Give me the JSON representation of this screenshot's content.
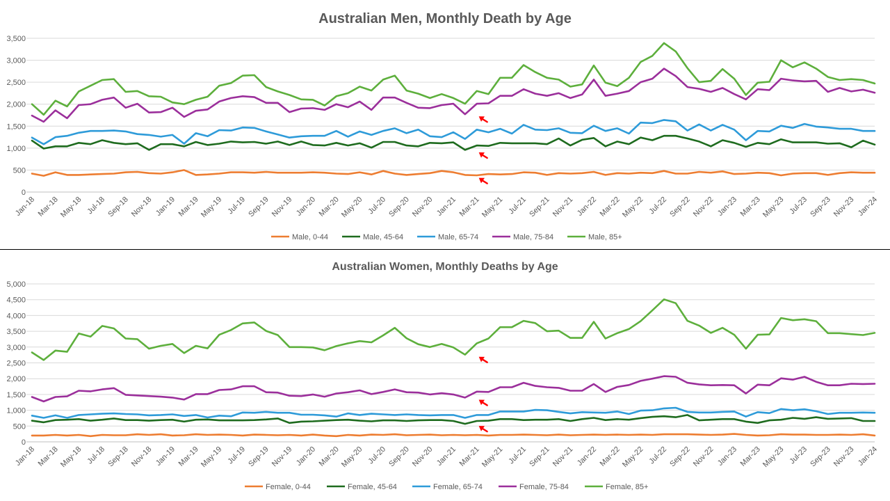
{
  "chart_data": [
    {
      "type": "line",
      "title": "Australian Men, Monthly Death by Age",
      "xlabel": "",
      "ylabel": "",
      "ylim": [
        0,
        3500
      ],
      "yticks": [
        "0",
        "500",
        "1,000",
        "1,500",
        "2,000",
        "2,500",
        "3,000",
        "3,500"
      ],
      "grid": true,
      "legend_position": "bottom",
      "x": [
        "Jan-18",
        "Feb-18",
        "Mar-18",
        "Apr-18",
        "May-18",
        "Jun-18",
        "Jul-18",
        "Aug-18",
        "Sep-18",
        "Oct-18",
        "Nov-18",
        "Dec-18",
        "Jan-19",
        "Feb-19",
        "Mar-19",
        "Apr-19",
        "May-19",
        "Jun-19",
        "Jul-19",
        "Aug-19",
        "Sep-19",
        "Oct-19",
        "Nov-19",
        "Dec-19",
        "Jan-20",
        "Feb-20",
        "Mar-20",
        "Apr-20",
        "May-20",
        "Jun-20",
        "Jul-20",
        "Aug-20",
        "Sep-20",
        "Oct-20",
        "Nov-20",
        "Dec-20",
        "Jan-21",
        "Feb-21",
        "Mar-21",
        "Apr-21",
        "May-21",
        "Jun-21",
        "Jul-21",
        "Aug-21",
        "Sep-21",
        "Oct-21",
        "Nov-21",
        "Dec-21",
        "Jan-22",
        "Feb-22",
        "Mar-22",
        "Apr-22",
        "May-22",
        "Jun-22",
        "Jul-22",
        "Aug-22",
        "Sep-22",
        "Oct-22",
        "Nov-22",
        "Dec-22",
        "Jan-23",
        "Feb-23",
        "Mar-23",
        "Apr-23",
        "May-23",
        "Jun-23",
        "Jul-23",
        "Aug-23",
        "Sep-23",
        "Oct-23",
        "Nov-23",
        "Dec-23",
        "Jan-24"
      ],
      "xtick_labels": [
        "Jan-18",
        "Mar-18",
        "May-18",
        "Jul-18",
        "Sep-18",
        "Nov-18",
        "Jan-19",
        "Mar-19",
        "May-19",
        "Jul-19",
        "Sep-19",
        "Nov-19",
        "Jan-20",
        "Mar-20",
        "May-20",
        "Jul-20",
        "Sep-20",
        "Nov-20",
        "Jan-21",
        "Mar-21",
        "May-21",
        "Jul-21",
        "Sep-21",
        "Nov-21",
        "Jan-22",
        "Mar-22",
        "May-22",
        "Jul-22",
        "Sep-22",
        "Nov-22",
        "Jan-23",
        "Mar-23",
        "May-23",
        "Jul-23",
        "Sep-23",
        "Nov-23",
        "Jan-24"
      ],
      "series": [
        {
          "name": "Male, 0-44",
          "color": "#ED7D31",
          "values": [
            420,
            370,
            450,
            390,
            390,
            400,
            410,
            420,
            450,
            460,
            430,
            420,
            450,
            500,
            390,
            400,
            420,
            450,
            450,
            440,
            460,
            440,
            440,
            440,
            450,
            440,
            420,
            410,
            450,
            400,
            480,
            420,
            390,
            410,
            430,
            480,
            450,
            390,
            380,
            410,
            400,
            410,
            450,
            440,
            390,
            430,
            420,
            430,
            460,
            390,
            430,
            420,
            440,
            430,
            480,
            420,
            420,
            460,
            440,
            470,
            410,
            420,
            440,
            430,
            380,
            420,
            430,
            430,
            390,
            430,
            450,
            440,
            440
          ]
        },
        {
          "name": "Male, 45-64",
          "color": "#1E6B1E",
          "values": [
            1170,
            990,
            1040,
            1040,
            1120,
            1090,
            1180,
            1120,
            1090,
            1110,
            960,
            1090,
            1090,
            1040,
            1140,
            1070,
            1100,
            1150,
            1130,
            1140,
            1100,
            1150,
            1070,
            1150,
            1070,
            1060,
            1120,
            1060,
            1110,
            1010,
            1140,
            1140,
            1060,
            1040,
            1120,
            1110,
            1130,
            960,
            1060,
            1050,
            1120,
            1110,
            1110,
            1110,
            1090,
            1220,
            1060,
            1190,
            1230,
            1040,
            1150,
            1090,
            1240,
            1180,
            1280,
            1280,
            1220,
            1150,
            1040,
            1180,
            1120,
            1030,
            1120,
            1090,
            1200,
            1130,
            1130,
            1130,
            1100,
            1110,
            1020,
            1170,
            1080
          ]
        },
        {
          "name": "Male, 65-74",
          "color": "#2E9BD9",
          "values": [
            1240,
            1090,
            1250,
            1280,
            1350,
            1390,
            1390,
            1400,
            1380,
            1320,
            1300,
            1260,
            1300,
            1100,
            1340,
            1270,
            1410,
            1400,
            1470,
            1460,
            1380,
            1310,
            1240,
            1270,
            1280,
            1280,
            1390,
            1260,
            1380,
            1300,
            1390,
            1450,
            1340,
            1420,
            1270,
            1250,
            1360,
            1210,
            1420,
            1360,
            1440,
            1330,
            1530,
            1420,
            1410,
            1450,
            1350,
            1340,
            1510,
            1390,
            1450,
            1330,
            1580,
            1570,
            1640,
            1610,
            1400,
            1540,
            1400,
            1530,
            1420,
            1180,
            1390,
            1380,
            1510,
            1460,
            1550,
            1490,
            1470,
            1440,
            1440,
            1390,
            1390
          ]
        },
        {
          "name": "Male, 75-84",
          "color": "#9B2F9B",
          "values": [
            1740,
            1600,
            1860,
            1680,
            1980,
            2000,
            2100,
            2150,
            1920,
            2010,
            1810,
            1820,
            1920,
            1710,
            1850,
            1880,
            2060,
            2140,
            2180,
            2160,
            2030,
            2030,
            1820,
            1900,
            1910,
            1870,
            2000,
            1930,
            2060,
            1870,
            2150,
            2150,
            2030,
            1920,
            1910,
            1980,
            2010,
            1770,
            2010,
            2020,
            2190,
            2190,
            2340,
            2240,
            2190,
            2250,
            2140,
            2220,
            2560,
            2190,
            2240,
            2300,
            2500,
            2580,
            2810,
            2640,
            2390,
            2350,
            2280,
            2370,
            2230,
            2110,
            2340,
            2320,
            2580,
            2540,
            2520,
            2530,
            2280,
            2370,
            2290,
            2330,
            2260
          ]
        },
        {
          "name": "Male, 85+",
          "color": "#5DAF3C",
          "values": [
            2000,
            1760,
            2080,
            1950,
            2290,
            2420,
            2550,
            2570,
            2280,
            2300,
            2180,
            2170,
            2040,
            2000,
            2100,
            2170,
            2420,
            2480,
            2650,
            2660,
            2390,
            2290,
            2210,
            2110,
            2100,
            1970,
            2180,
            2250,
            2400,
            2310,
            2560,
            2650,
            2310,
            2240,
            2140,
            2230,
            2140,
            2010,
            2300,
            2230,
            2600,
            2600,
            2890,
            2730,
            2600,
            2560,
            2400,
            2450,
            2880,
            2490,
            2410,
            2600,
            2960,
            3100,
            3390,
            3200,
            2820,
            2500,
            2530,
            2800,
            2580,
            2210,
            2490,
            2510,
            3000,
            2840,
            2950,
            2810,
            2620,
            2550,
            2570,
            2550,
            2470
          ]
        }
      ],
      "annotations": [
        {
          "type": "arrow",
          "x": "Mar-21",
          "y": 1770,
          "color": "#FF0000"
        },
        {
          "type": "arrow",
          "x": "Mar-21",
          "y": 950,
          "color": "#FF0000"
        },
        {
          "type": "arrow",
          "x": "Mar-21",
          "y": 370,
          "color": "#FF0000"
        }
      ]
    },
    {
      "type": "line",
      "title": "Australian Women, Monthly Deaths by Age",
      "xlabel": "",
      "ylabel": "",
      "ylim": [
        0,
        5000
      ],
      "yticks": [
        "0",
        "500",
        "1,000",
        "1,500",
        "2,000",
        "2,500",
        "3,000",
        "3,500",
        "4,000",
        "4,500",
        "5,000"
      ],
      "grid": true,
      "legend_position": "bottom",
      "x": [
        "Jan-18",
        "Feb-18",
        "Mar-18",
        "Apr-18",
        "May-18",
        "Jun-18",
        "Jul-18",
        "Aug-18",
        "Sep-18",
        "Oct-18",
        "Nov-18",
        "Dec-18",
        "Jan-19",
        "Feb-19",
        "Mar-19",
        "Apr-19",
        "May-19",
        "Jun-19",
        "Jul-19",
        "Aug-19",
        "Sep-19",
        "Oct-19",
        "Nov-19",
        "Dec-19",
        "Jan-20",
        "Feb-20",
        "Mar-20",
        "Apr-20",
        "May-20",
        "Jun-20",
        "Jul-20",
        "Aug-20",
        "Sep-20",
        "Oct-20",
        "Nov-20",
        "Dec-20",
        "Jan-21",
        "Feb-21",
        "Mar-21",
        "Apr-21",
        "May-21",
        "Jun-21",
        "Jul-21",
        "Aug-21",
        "Sep-21",
        "Oct-21",
        "Nov-21",
        "Dec-21",
        "Jan-22",
        "Feb-22",
        "Mar-22",
        "Apr-22",
        "May-22",
        "Jun-22",
        "Jul-22",
        "Aug-22",
        "Sep-22",
        "Oct-22",
        "Nov-22",
        "Dec-22",
        "Jan-23",
        "Feb-23",
        "Mar-23",
        "Apr-23",
        "May-23",
        "Jun-23",
        "Jul-23",
        "Aug-23",
        "Sep-23",
        "Oct-23",
        "Nov-23",
        "Dec-23",
        "Jan-24"
      ],
      "xtick_labels": [
        "Jan-18",
        "Mar-18",
        "May-18",
        "Jul-18",
        "Sep-18",
        "Nov-18",
        "Jan-19",
        "Mar-19",
        "May-19",
        "Jul-19",
        "Sep-19",
        "Nov-19",
        "Jan-20",
        "Mar-20",
        "May-20",
        "Jul-20",
        "Sep-20",
        "Nov-20",
        "Jan-21",
        "Mar-21",
        "May-21",
        "Jul-21",
        "Sep-21",
        "Nov-21",
        "Jan-22",
        "Mar-22",
        "May-22",
        "Jul-22",
        "Sep-22",
        "Nov-22",
        "Jan-23",
        "Mar-23",
        "May-23",
        "Jul-23",
        "Sep-23",
        "Nov-23",
        "Jan-24"
      ],
      "series": [
        {
          "name": "Female, 0-44",
          "color": "#ED7D31",
          "values": [
            200,
            200,
            220,
            200,
            220,
            180,
            220,
            210,
            210,
            240,
            220,
            240,
            200,
            210,
            240,
            220,
            230,
            220,
            200,
            230,
            220,
            210,
            220,
            200,
            230,
            200,
            180,
            220,
            200,
            230,
            220,
            240,
            210,
            220,
            230,
            210,
            220,
            210,
            220,
            200,
            220,
            220,
            230,
            220,
            210,
            230,
            210,
            220,
            230,
            220,
            230,
            220,
            230,
            220,
            240,
            240,
            240,
            230,
            220,
            230,
            250,
            220,
            200,
            210,
            240,
            230,
            230,
            220,
            220,
            230,
            220,
            240,
            200
          ]
        },
        {
          "name": "Female, 45-64",
          "color": "#1E6B1E",
          "values": [
            670,
            620,
            690,
            700,
            720,
            670,
            700,
            740,
            690,
            690,
            670,
            690,
            700,
            640,
            700,
            710,
            680,
            680,
            680,
            690,
            710,
            740,
            600,
            640,
            650,
            670,
            690,
            700,
            670,
            650,
            680,
            680,
            660,
            680,
            690,
            690,
            660,
            570,
            660,
            670,
            720,
            720,
            690,
            700,
            700,
            720,
            660,
            720,
            760,
            690,
            720,
            700,
            750,
            790,
            810,
            780,
            850,
            680,
            700,
            720,
            720,
            640,
            600,
            680,
            700,
            760,
            730,
            780,
            730,
            740,
            750,
            660,
            660
          ]
        },
        {
          "name": "Female, 65-74",
          "color": "#2E9BD9",
          "values": [
            830,
            760,
            840,
            760,
            850,
            870,
            890,
            900,
            880,
            870,
            840,
            850,
            870,
            820,
            850,
            770,
            830,
            810,
            930,
            920,
            950,
            920,
            920,
            860,
            860,
            840,
            800,
            900,
            850,
            890,
            870,
            850,
            870,
            850,
            840,
            850,
            850,
            760,
            850,
            850,
            960,
            960,
            960,
            1010,
            1000,
            950,
            900,
            940,
            930,
            920,
            960,
            880,
            990,
            1000,
            1060,
            1080,
            950,
            930,
            930,
            950,
            960,
            800,
            940,
            910,
            1040,
            1000,
            1030,
            970,
            880,
            920,
            920,
            930,
            920
          ]
        },
        {
          "name": "Female, 75-84",
          "color": "#9B2F9B",
          "values": [
            1420,
            1280,
            1420,
            1440,
            1620,
            1600,
            1660,
            1700,
            1490,
            1470,
            1450,
            1430,
            1400,
            1340,
            1510,
            1510,
            1640,
            1660,
            1760,
            1760,
            1570,
            1560,
            1460,
            1450,
            1500,
            1430,
            1530,
            1570,
            1630,
            1510,
            1580,
            1660,
            1570,
            1560,
            1500,
            1540,
            1500,
            1400,
            1590,
            1580,
            1730,
            1730,
            1870,
            1770,
            1730,
            1710,
            1620,
            1620,
            1830,
            1580,
            1740,
            1800,
            1930,
            2000,
            2080,
            2060,
            1870,
            1820,
            1790,
            1800,
            1790,
            1530,
            1810,
            1790,
            2010,
            1970,
            2060,
            1900,
            1790,
            1790,
            1840,
            1830,
            1840
          ]
        },
        {
          "name": "Female, 85+",
          "color": "#5DAF3C",
          "values": [
            2830,
            2590,
            2890,
            2850,
            3430,
            3330,
            3670,
            3590,
            3270,
            3250,
            2950,
            3040,
            3100,
            2810,
            3040,
            2960,
            3390,
            3540,
            3750,
            3780,
            3510,
            3380,
            3000,
            3000,
            2990,
            2900,
            3030,
            3120,
            3190,
            3150,
            3370,
            3610,
            3280,
            3090,
            3000,
            3100,
            2990,
            2760,
            3120,
            3270,
            3630,
            3630,
            3830,
            3760,
            3500,
            3520,
            3290,
            3290,
            3800,
            3270,
            3440,
            3570,
            3820,
            4160,
            4510,
            4390,
            3830,
            3680,
            3450,
            3610,
            3390,
            2950,
            3390,
            3400,
            3920,
            3850,
            3880,
            3820,
            3440,
            3440,
            3410,
            3380,
            3450
          ]
        }
      ],
      "annotations": [
        {
          "type": "arrow",
          "x": "Mar-21",
          "y": 2760,
          "color": "#FF0000"
        },
        {
          "type": "arrow",
          "x": "Mar-21",
          "y": 1400,
          "color": "#FF0000"
        },
        {
          "type": "arrow",
          "x": "Mar-21",
          "y": 570,
          "color": "#FF0000"
        }
      ]
    }
  ]
}
